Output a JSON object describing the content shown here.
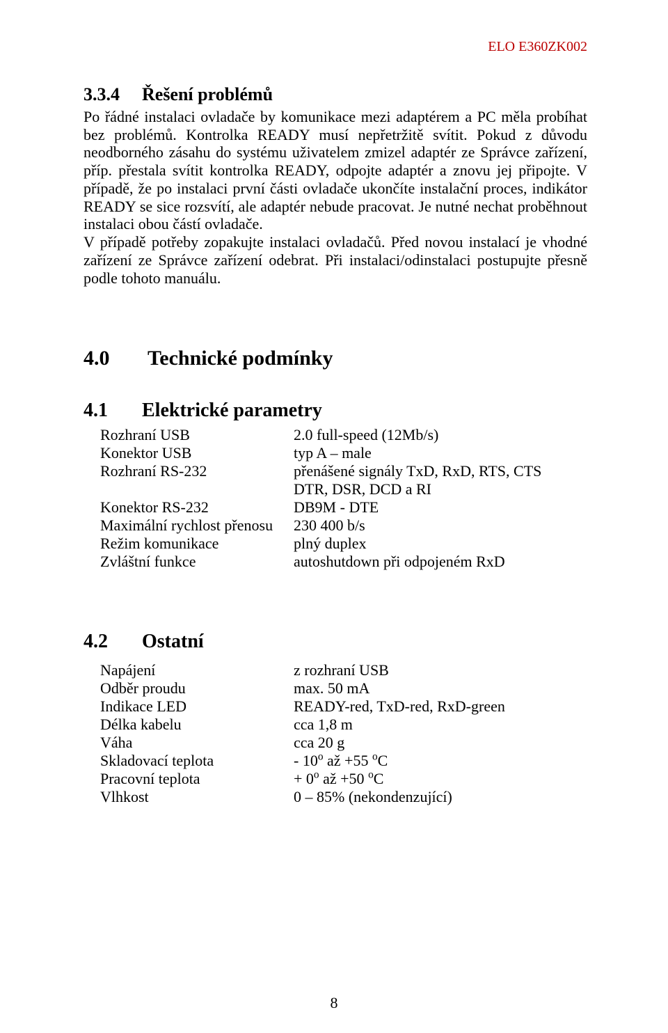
{
  "doc_id": "ELO E360ZK002",
  "page_number": "8",
  "sec334": {
    "number": "3.3.4",
    "title": "Řešení problémů",
    "body": "Po řádné instalaci ovladače by komunikace mezi adaptérem a PC měla probíhat bez problémů. Kontrolka READY musí nepřetržitě svítit. Pokud z důvodu neodborného zásahu do systému uživatelem zmizel adaptér ze Správce zařízení, příp. přestala svítit kontrolka READY, odpojte adaptér a znovu jej připojte. V případě, že po instalaci první části ovladače ukončíte instalační proces, indikátor READY se sice rozsvítí, ale adaptér nebude pracovat. Je nutné nechat proběhnout instalaci obou částí ovladače.\nV případě potřeby zopakujte instalaci ovladačů. Před novou instalací je vhodné zařízení ze Správce zařízení odebrat. Při instalaci/odinstalaci postupujte přesně podle tohoto manuálu."
  },
  "sec40": {
    "number": "4.0",
    "title": "Technické podmínky"
  },
  "sec41": {
    "number": "4.1",
    "title": "Elektrické parametry",
    "rows": [
      {
        "k": "Rozhraní USB",
        "v": "2.0 full-speed (12Mb/s)"
      },
      {
        "k": "Konektor USB",
        "v": "typ A – male"
      },
      {
        "k": "Rozhraní RS-232",
        "v": "přenášené signály TxD, RxD, RTS, CTS"
      },
      {
        "k": "",
        "v": "DTR, DSR, DCD a RI"
      },
      {
        "k": "Konektor RS-232",
        "v": "DB9M  - DTE"
      },
      {
        "k": "Maximální rychlost přenosu",
        "v": "230 400 b/s"
      },
      {
        "k": "Režim komunikace",
        "v": "plný duplex"
      },
      {
        "k": "Zvláštní funkce",
        "v": "autoshutdown při odpojeném RxD"
      }
    ]
  },
  "sec42": {
    "number": "4.2",
    "title": "Ostatní",
    "rows": [
      {
        "k": "Napájení",
        "v": "z rozhraní USB"
      },
      {
        "k": "Odběr proudu",
        "v": "max. 50 mA"
      },
      {
        "k": "Indikace LED",
        "v": "READY-red, TxD-red, RxD-green"
      },
      {
        "k": "Délka kabelu",
        "v": "cca 1,8 m"
      },
      {
        "k": "Váha",
        "v": "cca 20 g"
      },
      {
        "k": "Skladovací teplota",
        "v_html": "- 10<sup>o</sup> až +55 <sup>o</sup>C"
      },
      {
        "k": "Pracovní teplota",
        "v_html": "+ 0<sup>o</sup>  až +50 <sup>o</sup>C"
      },
      {
        "k": "Vlhkost",
        "v": "0 – 85% (nekondenzující)"
      }
    ]
  }
}
